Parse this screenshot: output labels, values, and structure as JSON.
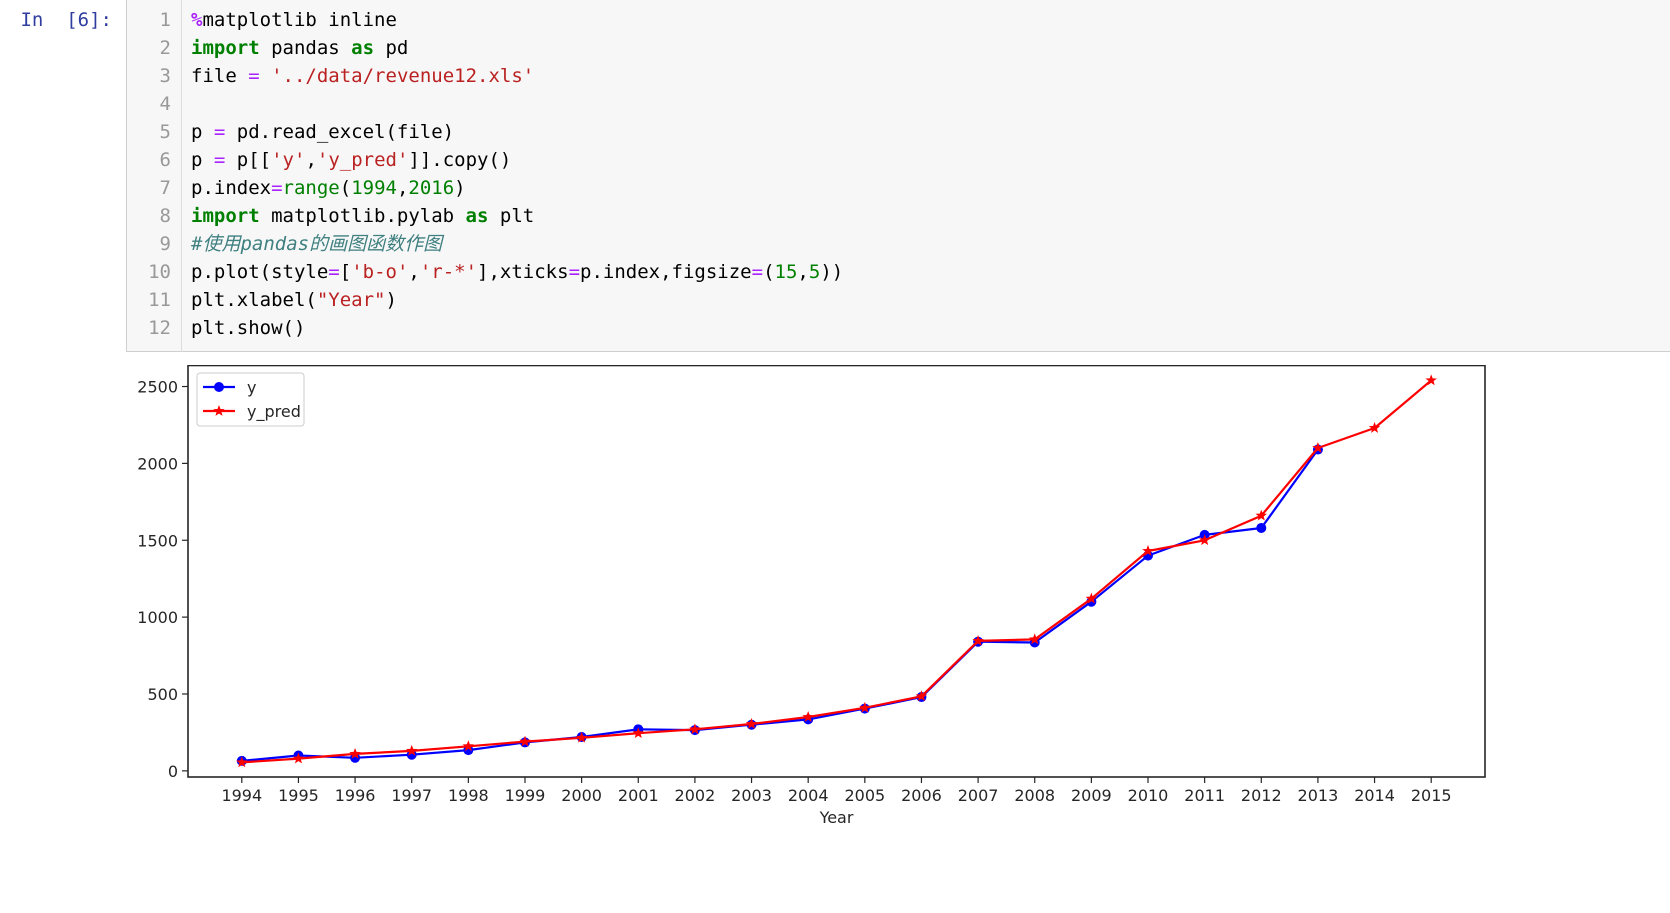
{
  "cell": {
    "prompt": "In  [6]:",
    "lines": [
      {
        "n": "1",
        "tokens": [
          [
            "mg",
            "%"
          ],
          [
            "",
            "matplotlib inline"
          ]
        ]
      },
      {
        "n": "2",
        "tokens": [
          [
            "kw",
            "import"
          ],
          [
            "",
            " pandas "
          ],
          [
            "kw",
            "as"
          ],
          [
            "",
            " pd"
          ]
        ]
      },
      {
        "n": "3",
        "tokens": [
          [
            "",
            "file "
          ],
          [
            "op",
            "="
          ],
          [
            "",
            " "
          ],
          [
            "str",
            "'../data/revenue12.xls'"
          ]
        ]
      },
      {
        "n": "4",
        "tokens": []
      },
      {
        "n": "5",
        "tokens": [
          [
            "",
            "p "
          ],
          [
            "op",
            "="
          ],
          [
            "",
            " pd.read_excel(file)"
          ]
        ]
      },
      {
        "n": "6",
        "tokens": [
          [
            "",
            "p "
          ],
          [
            "op",
            "="
          ],
          [
            "",
            " p[["
          ],
          [
            "str",
            "'y'"
          ],
          [
            "",
            ","
          ],
          [
            "str",
            "'y_pred'"
          ],
          [
            "",
            "]].copy()"
          ]
        ]
      },
      {
        "n": "7",
        "tokens": [
          [
            "",
            "p.index"
          ],
          [
            "op",
            "="
          ],
          [
            "bi",
            "range"
          ],
          [
            "",
            "("
          ],
          [
            "num",
            "1994"
          ],
          [
            "",
            ","
          ],
          [
            "num",
            "2016"
          ],
          [
            "",
            ")"
          ]
        ]
      },
      {
        "n": "8",
        "tokens": [
          [
            "kw",
            "import"
          ],
          [
            "",
            " matplotlib.pylab "
          ],
          [
            "kw",
            "as"
          ],
          [
            "",
            " plt"
          ]
        ]
      },
      {
        "n": "9",
        "tokens": [
          [
            "cm",
            "#使用pandas的画图函数作图"
          ]
        ]
      },
      {
        "n": "10",
        "tokens": [
          [
            "",
            "p.plot(style"
          ],
          [
            "op",
            "="
          ],
          [
            "",
            "["
          ],
          [
            "str",
            "'b-o'"
          ],
          [
            "",
            ","
          ],
          [
            "str",
            "'r-*'"
          ],
          [
            "",
            "],xticks"
          ],
          [
            "op",
            "="
          ],
          [
            "",
            "p.index,figsize"
          ],
          [
            "op",
            "="
          ],
          [
            "",
            "("
          ],
          [
            "num",
            "15"
          ],
          [
            "",
            ","
          ],
          [
            "num",
            "5"
          ],
          [
            "",
            "))"
          ]
        ]
      },
      {
        "n": "11",
        "tokens": [
          [
            "",
            "plt.xlabel("
          ],
          [
            "str",
            "\"Year\""
          ],
          [
            "",
            ")"
          ]
        ]
      },
      {
        "n": "12",
        "tokens": [
          [
            "",
            "plt.show()"
          ]
        ]
      }
    ]
  },
  "chart_data": {
    "type": "line",
    "x": [
      1994,
      1995,
      1996,
      1997,
      1998,
      1999,
      2000,
      2001,
      2002,
      2003,
      2004,
      2005,
      2006,
      2007,
      2008,
      2009,
      2010,
      2011,
      2012,
      2013,
      2014,
      2015
    ],
    "series": [
      {
        "name": "y",
        "color": "#0000ff",
        "marker": "circle",
        "values": [
          65,
          100,
          85,
          105,
          135,
          185,
          220,
          270,
          265,
          300,
          335,
          405,
          480,
          840,
          835,
          1100,
          1400,
          1535,
          1580,
          2090,
          null,
          null
        ]
      },
      {
        "name": "y_pred",
        "color": "#ff0000",
        "marker": "star",
        "values": [
          55,
          80,
          110,
          130,
          160,
          190,
          215,
          245,
          270,
          305,
          350,
          410,
          485,
          845,
          855,
          1120,
          1430,
          1500,
          1660,
          2100,
          2230,
          2540
        ]
      }
    ],
    "xticks": [
      "1994",
      "1995",
      "1996",
      "1997",
      "1998",
      "1999",
      "2000",
      "2001",
      "2002",
      "2003",
      "2004",
      "2005",
      "2006",
      "2007",
      "2008",
      "2009",
      "2010",
      "2011",
      "2012",
      "2013",
      "2014",
      "2015"
    ],
    "yticks": [
      "0",
      "500",
      "1000",
      "1500",
      "2000",
      "2500"
    ],
    "xlabel": "Year",
    "ylabel": "",
    "title": "",
    "xlim": [
      1993.05,
      2015.95
    ],
    "ylim": [
      -40,
      2640
    ],
    "grid": false,
    "legend": "top-left"
  }
}
